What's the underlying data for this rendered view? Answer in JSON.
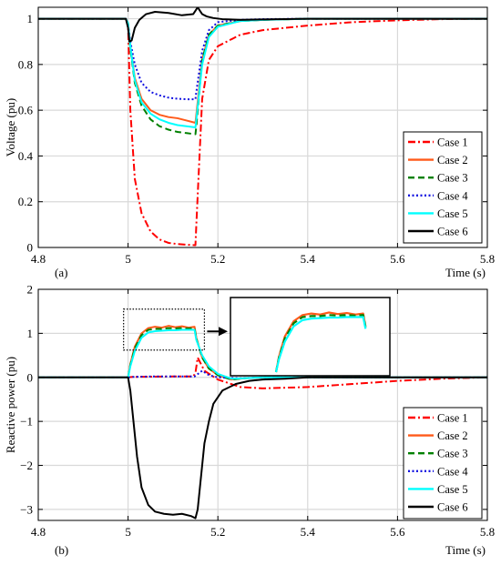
{
  "chart_data": [
    {
      "type": "line",
      "panel_label": "(a)",
      "xlabel": "Time (s)",
      "ylabel": "Voltage (pu)",
      "xlim": [
        4.8,
        5.8
      ],
      "ylim": [
        0,
        1.05
      ],
      "xticks": [
        "4.8",
        "5",
        "5.2",
        "5.4",
        "5.6",
        "5.8"
      ],
      "yticks": [
        "0",
        "0.2",
        "0.4",
        "0.6",
        "0.8",
        "1"
      ],
      "grid": true,
      "legend_position": "bottom-right",
      "series": [
        {
          "name": "Case 1",
          "color": "#ff0000",
          "dash": "dashdot",
          "x": [
            4.8,
            4.995,
            5.0,
            5.005,
            5.015,
            5.03,
            5.05,
            5.07,
            5.09,
            5.11,
            5.13,
            5.15,
            5.152,
            5.165,
            5.18,
            5.2,
            5.25,
            5.3,
            5.4,
            5.5,
            5.6,
            5.7,
            5.8
          ],
          "y": [
            1.0,
            1.0,
            0.97,
            0.6,
            0.3,
            0.15,
            0.07,
            0.035,
            0.02,
            0.015,
            0.012,
            0.01,
            0.1,
            0.65,
            0.82,
            0.88,
            0.93,
            0.95,
            0.97,
            0.985,
            0.993,
            0.998,
            1.0
          ]
        },
        {
          "name": "Case 2",
          "color": "#ff5a1a",
          "dash": "solid",
          "x": [
            4.8,
            4.995,
            5.0,
            5.005,
            5.015,
            5.03,
            5.05,
            5.07,
            5.09,
            5.11,
            5.13,
            5.15,
            5.152,
            5.165,
            5.18,
            5.2,
            5.25,
            5.3,
            5.4,
            5.8
          ],
          "y": [
            1.0,
            1.0,
            0.98,
            0.88,
            0.74,
            0.65,
            0.6,
            0.58,
            0.57,
            0.565,
            0.555,
            0.545,
            0.58,
            0.82,
            0.93,
            0.97,
            0.99,
            0.995,
            1.0,
            1.0
          ]
        },
        {
          "name": "Case 3",
          "color": "#008000",
          "dash": "dashed",
          "x": [
            4.8,
            4.995,
            5.0,
            5.005,
            5.015,
            5.03,
            5.05,
            5.07,
            5.09,
            5.11,
            5.13,
            5.15,
            5.152,
            5.165,
            5.18,
            5.2,
            5.25,
            5.3,
            5.4,
            5.8
          ],
          "y": [
            1.0,
            1.0,
            0.98,
            0.87,
            0.72,
            0.62,
            0.56,
            0.53,
            0.515,
            0.505,
            0.5,
            0.495,
            0.53,
            0.82,
            0.93,
            0.97,
            0.99,
            0.995,
            1.0,
            1.0
          ]
        },
        {
          "name": "Case 4",
          "color": "#1010e0",
          "dash": "dotted",
          "x": [
            4.8,
            4.995,
            5.0,
            5.005,
            5.015,
            5.03,
            5.05,
            5.07,
            5.09,
            5.11,
            5.13,
            5.15,
            5.152,
            5.165,
            5.18,
            5.2,
            5.25,
            5.3,
            5.4,
            5.8
          ],
          "y": [
            1.0,
            1.0,
            0.98,
            0.9,
            0.8,
            0.72,
            0.68,
            0.665,
            0.655,
            0.65,
            0.648,
            0.648,
            0.68,
            0.86,
            0.95,
            0.985,
            0.995,
            0.998,
            1.0,
            1.0
          ]
        },
        {
          "name": "Case 5",
          "color": "#00ffff",
          "dash": "solid",
          "x": [
            4.8,
            4.995,
            5.0,
            5.005,
            5.015,
            5.03,
            5.05,
            5.07,
            5.09,
            5.11,
            5.13,
            5.15,
            5.152,
            5.165,
            5.18,
            5.2,
            5.25,
            5.3,
            5.4,
            5.8
          ],
          "y": [
            1.0,
            1.0,
            0.98,
            0.88,
            0.73,
            0.635,
            0.585,
            0.56,
            0.545,
            0.535,
            0.53,
            0.525,
            0.56,
            0.8,
            0.92,
            0.965,
            0.99,
            0.995,
            1.0,
            1.0
          ]
        },
        {
          "name": "Case 6",
          "color": "#000000",
          "dash": "solid",
          "x": [
            4.8,
            4.995,
            5.0,
            5.003,
            5.008,
            5.015,
            5.025,
            5.04,
            5.06,
            5.09,
            5.12,
            5.145,
            5.15,
            5.155,
            5.16,
            5.165,
            5.175,
            5.19,
            5.21,
            5.25,
            5.3,
            5.4,
            5.8
          ],
          "y": [
            1.0,
            1.0,
            0.96,
            0.9,
            0.905,
            0.96,
            0.995,
            1.02,
            1.03,
            1.025,
            1.015,
            1.02,
            1.035,
            1.05,
            1.035,
            1.02,
            1.01,
            1.003,
            0.998,
            0.995,
            0.997,
            1.0,
            1.0
          ]
        }
      ]
    },
    {
      "type": "line",
      "panel_label": "(b)",
      "xlabel": "Time (s)",
      "ylabel": "Reactive power (pu)",
      "xlim": [
        4.8,
        5.8
      ],
      "ylim": [
        -3.25,
        2
      ],
      "xticks": [
        "4.8",
        "5",
        "5.2",
        "5.4",
        "5.6",
        "5.8"
      ],
      "yticks": [
        "-3",
        "-2",
        "-1",
        "0",
        "1",
        "2"
      ],
      "grid": true,
      "legend_position": "bottom-right",
      "inset": "zoomed view of the dotted region around 1 pu for t = 5.0–5.15 s",
      "series": [
        {
          "name": "Case 1",
          "color": "#ff0000",
          "dash": "dashdot",
          "x": [
            4.8,
            5.0,
            5.01,
            5.1,
            5.145,
            5.15,
            5.155,
            5.17,
            5.2,
            5.25,
            5.3,
            5.4,
            5.5,
            5.6,
            5.7,
            5.8
          ],
          "y": [
            0,
            0,
            0.01,
            0.02,
            0.02,
            0.1,
            0.45,
            0.15,
            -0.05,
            -0.22,
            -0.25,
            -0.22,
            -0.15,
            -0.08,
            -0.03,
            0
          ]
        },
        {
          "name": "Case 2",
          "color": "#ff5a1a",
          "dash": "solid",
          "x": [
            4.8,
            5.0,
            5.005,
            5.015,
            5.03,
            5.045,
            5.06,
            5.075,
            5.09,
            5.105,
            5.12,
            5.135,
            5.148,
            5.152,
            5.165,
            5.18,
            5.2,
            5.23,
            5.26,
            5.3,
            5.8
          ],
          "y": [
            0,
            0,
            0.3,
            0.7,
            1.0,
            1.12,
            1.15,
            1.13,
            1.17,
            1.14,
            1.16,
            1.13,
            1.15,
            0.9,
            0.45,
            0.2,
            0.05,
            -0.05,
            -0.02,
            0,
            0
          ]
        },
        {
          "name": "Case 3",
          "color": "#008000",
          "dash": "dashed",
          "x": [
            4.8,
            5.0,
            5.005,
            5.015,
            5.03,
            5.045,
            5.06,
            5.075,
            5.09,
            5.105,
            5.12,
            5.135,
            5.148,
            5.152,
            5.165,
            5.18,
            5.2,
            5.23,
            5.26,
            5.3,
            5.8
          ],
          "y": [
            0,
            0,
            0.28,
            0.66,
            0.96,
            1.08,
            1.1,
            1.1,
            1.12,
            1.11,
            1.12,
            1.11,
            1.12,
            0.88,
            0.45,
            0.2,
            0.05,
            -0.05,
            -0.02,
            0,
            0
          ]
        },
        {
          "name": "Case 4",
          "color": "#1010e0",
          "dash": "dotted",
          "x": [
            4.8,
            5.0,
            5.01,
            5.05,
            5.1,
            5.148,
            5.152,
            5.165,
            5.18,
            5.2,
            5.25,
            5.3,
            5.4,
            5.8
          ],
          "y": [
            0,
            0,
            0.01,
            0.02,
            0.02,
            0.02,
            0.05,
            0.15,
            0.05,
            0.0,
            -0.02,
            0,
            0,
            0
          ]
        },
        {
          "name": "Case 5",
          "color": "#00ffff",
          "dash": "solid",
          "x": [
            4.8,
            5.0,
            5.005,
            5.015,
            5.03,
            5.045,
            5.06,
            5.075,
            5.09,
            5.105,
            5.12,
            5.135,
            5.148,
            5.152,
            5.165,
            5.18,
            5.2,
            5.23,
            5.26,
            5.3,
            5.8
          ],
          "y": [
            0,
            0,
            0.25,
            0.6,
            0.9,
            1.02,
            1.05,
            1.06,
            1.07,
            1.07,
            1.08,
            1.08,
            1.08,
            0.85,
            0.5,
            0.25,
            0.08,
            -0.03,
            -0.02,
            0,
            0
          ]
        },
        {
          "name": "Case 6",
          "color": "#000000",
          "dash": "solid",
          "x": [
            4.8,
            5.0,
            5.005,
            5.012,
            5.02,
            5.03,
            5.045,
            5.06,
            5.08,
            5.1,
            5.12,
            5.14,
            5.15,
            5.155,
            5.16,
            5.165,
            5.17,
            5.18,
            5.19,
            5.21,
            5.24,
            5.27,
            5.3,
            5.35,
            5.4,
            5.8
          ],
          "y": [
            0,
            0,
            -0.3,
            -1.0,
            -1.8,
            -2.5,
            -2.9,
            -3.05,
            -3.1,
            -3.12,
            -3.1,
            -3.15,
            -3.2,
            -3.0,
            -2.5,
            -2.0,
            -1.5,
            -1.0,
            -0.6,
            -0.3,
            -0.15,
            -0.08,
            -0.05,
            -0.03,
            0,
            0
          ]
        }
      ]
    }
  ]
}
